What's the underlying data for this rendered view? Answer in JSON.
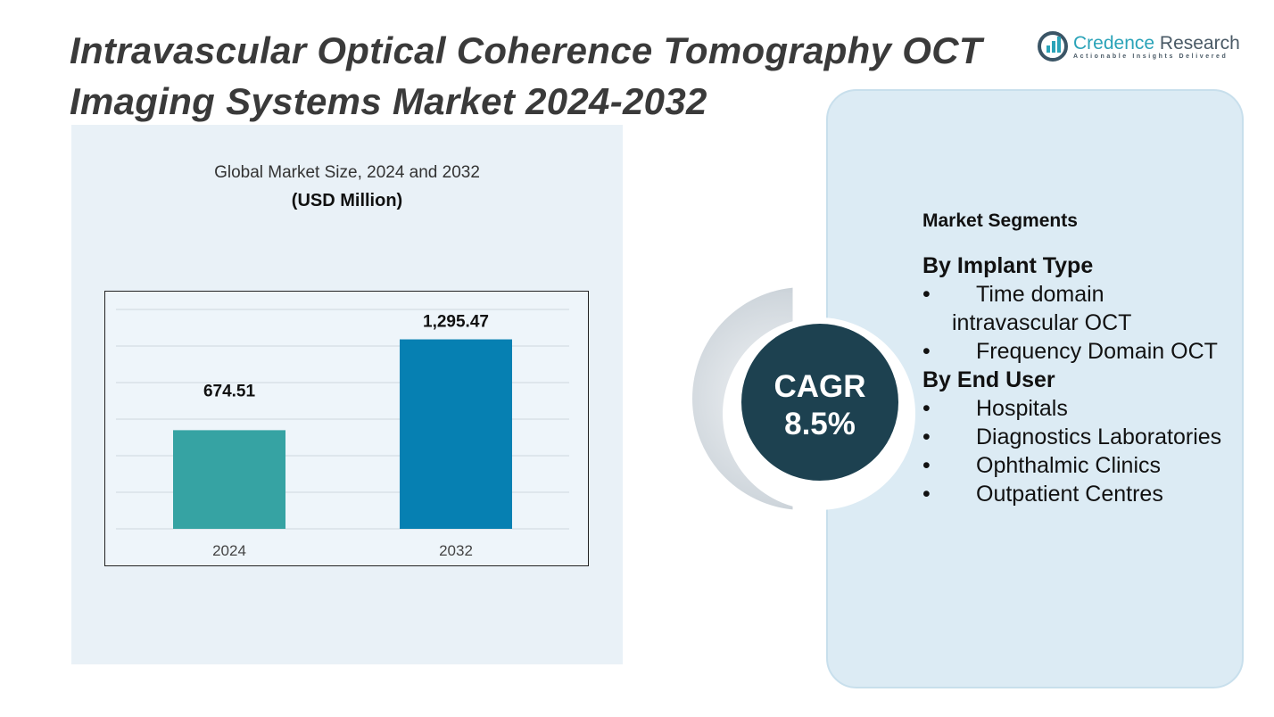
{
  "title": [
    "Intravascular Optical Coherence Tomography OCT",
    "Imaging Systems Market 2024-2032"
  ],
  "logo": {
    "name_a": "Credence",
    "name_b": " Research",
    "tagline": "Actionable Insights Delivered"
  },
  "chart_data": {
    "type": "bar",
    "title": "Global Market Size, 2024 and 2032",
    "unit": "(USD Million)",
    "categories": [
      "2024",
      "2032"
    ],
    "values": [
      674.51,
      1295.47
    ],
    "labels": [
      "674.51",
      "1,295.47"
    ],
    "colors": [
      "#36a3a3",
      "#0680b2"
    ],
    "ylim": [
      0,
      1500
    ],
    "grid": true
  },
  "cagr": {
    "label": "CAGR",
    "value": "8.5%"
  },
  "segments": {
    "heading": "Market Segments",
    "groups": [
      {
        "title": "By Implant Type",
        "items": [
          "Time domain intravascular OCT",
          "Frequency Domain OCT"
        ]
      },
      {
        "title": "By End User",
        "items": [
          "Hospitals",
          "Diagnostics Laboratories",
          "Ophthalmic Clinics",
          "Outpatient Centres"
        ]
      }
    ]
  }
}
